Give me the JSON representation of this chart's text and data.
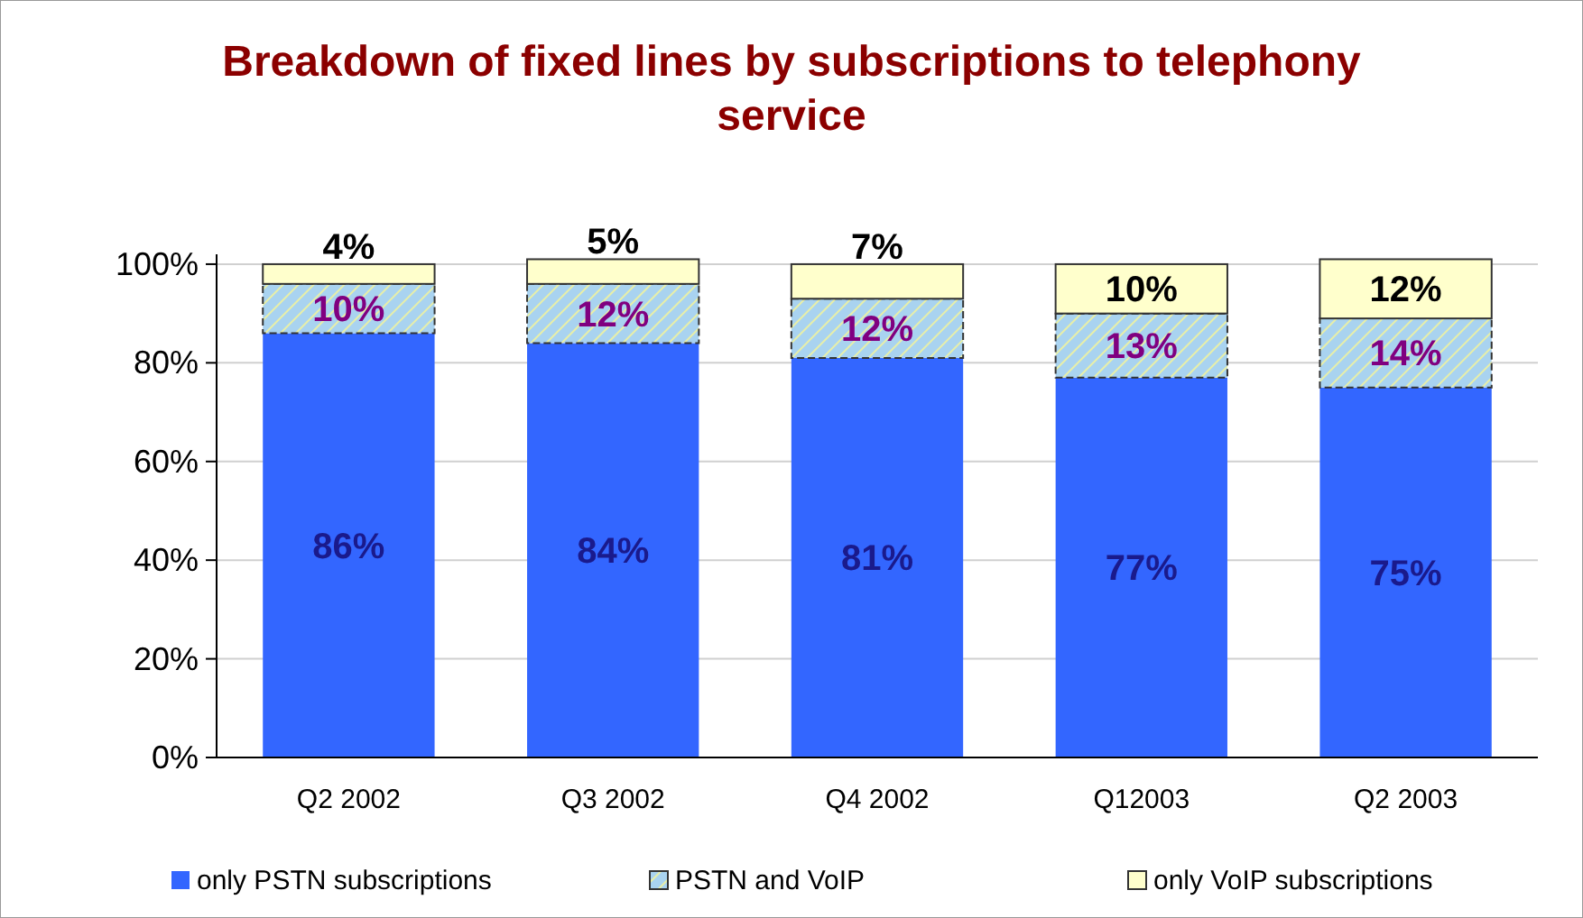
{
  "chart_data": {
    "type": "bar",
    "title": "Breakdown of fixed lines by subscriptions to telephony service",
    "categories": [
      "Q2 2002",
      "Q3 2002",
      "Q4 2002",
      "Q12003",
      "Q2 2003"
    ],
    "stacked": true,
    "series": [
      {
        "name": "only PSTN subscriptions",
        "color": "#3366ff",
        "values": [
          86,
          84,
          81,
          77,
          75
        ],
        "value_labels": [
          "86%",
          "84%",
          "81%",
          "77%",
          "75%"
        ]
      },
      {
        "name": "PSTN and VoIP",
        "color": "#a9d3f0",
        "values": [
          10,
          12,
          12,
          13,
          14
        ],
        "value_labels": [
          "10%",
          "12%",
          "12%",
          "13%",
          "14%"
        ]
      },
      {
        "name": "only VoIP subscriptions",
        "color": "#ffffcc",
        "values": [
          4,
          5,
          7,
          10,
          12
        ],
        "value_labels": [
          "4%",
          "5%",
          "7%",
          "10%",
          "12%"
        ]
      }
    ],
    "ylim": [
      0,
      102
    ],
    "yticks": [
      {
        "value": 0,
        "label": "0%"
      },
      {
        "value": 20,
        "label": "20%"
      },
      {
        "value": 40,
        "label": "40%"
      },
      {
        "value": 60,
        "label": "60%"
      },
      {
        "value": 80,
        "label": "80%"
      },
      {
        "value": 100,
        "label": "100%"
      }
    ],
    "grid": "y",
    "legend": "bottom"
  }
}
